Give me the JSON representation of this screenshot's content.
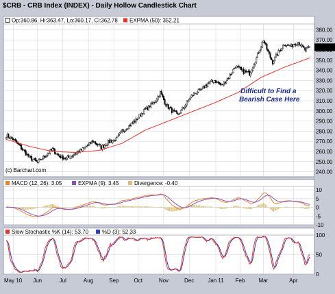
{
  "chart_data": {
    "type": "candlestick",
    "title": "$CRB - CRB Index (INDEX) - Daily Hollow Candlestick Chart",
    "source": "(c) Barchart.com",
    "annotation": [
      "Difficult to Find a",
      "Bearish Case Here"
    ],
    "x_labels": [
      "May 10",
      "Jun",
      "Jul",
      "Aug",
      "Sep",
      "Oct",
      "Nov",
      "Dec",
      "Jan 11",
      "Feb",
      "Mar",
      "Apr"
    ],
    "x_label_index": [
      6,
      27,
      49,
      71,
      93,
      114,
      136,
      158,
      181,
      202,
      222,
      248
    ],
    "price_panel": {
      "legend_ohlc": "Op:360.86, Hi:363.47, Lo:360.17, Cl:362.78",
      "legend_ema": "EXPMA (50): 352.21",
      "last_label": "362.78",
      "last_value": 362.78,
      "ylim": [
        235,
        385
      ],
      "yticks": [
        240,
        250,
        260,
        270,
        280,
        290,
        300,
        310,
        320,
        330,
        340,
        350,
        360,
        370,
        380
      ],
      "ytick_labels": [
        "240.00",
        "250.00",
        "260.00",
        "270.00",
        "280.00",
        "290.00",
        "300.00",
        "310.00",
        "320.00",
        "330.00",
        "340.00",
        "350.00",
        "360.00",
        "370.00",
        "380.00"
      ],
      "close_anchors": [
        [
          0,
          276
        ],
        [
          6,
          272
        ],
        [
          14,
          262
        ],
        [
          20,
          254
        ],
        [
          27,
          249
        ],
        [
          33,
          255
        ],
        [
          40,
          262
        ],
        [
          46,
          255
        ],
        [
          52,
          253
        ],
        [
          58,
          257
        ],
        [
          66,
          262
        ],
        [
          75,
          270
        ],
        [
          82,
          264
        ],
        [
          88,
          269
        ],
        [
          95,
          272
        ],
        [
          100,
          280
        ],
        [
          106,
          285
        ],
        [
          112,
          291
        ],
        [
          118,
          299
        ],
        [
          124,
          305
        ],
        [
          128,
          309
        ],
        [
          133,
          318
        ],
        [
          138,
          306
        ],
        [
          143,
          300
        ],
        [
          148,
          296
        ],
        [
          153,
          303
        ],
        [
          158,
          312
        ],
        [
          163,
          318
        ],
        [
          168,
          320
        ],
        [
          174,
          327
        ],
        [
          180,
          330
        ],
        [
          186,
          325
        ],
        [
          192,
          333
        ],
        [
          198,
          344
        ],
        [
          204,
          339
        ],
        [
          210,
          337
        ],
        [
          216,
          352
        ],
        [
          222,
          370
        ],
        [
          226,
          358
        ],
        [
          230,
          348
        ],
        [
          234,
          356
        ],
        [
          240,
          366
        ],
        [
          246,
          364
        ],
        [
          252,
          368
        ],
        [
          258,
          360
        ],
        [
          262,
          362.78
        ]
      ],
      "ema_anchors": [
        [
          0,
          272
        ],
        [
          20,
          265
        ],
        [
          40,
          260
        ],
        [
          60,
          259
        ],
        [
          80,
          261
        ],
        [
          100,
          268
        ],
        [
          120,
          281
        ],
        [
          140,
          290
        ],
        [
          160,
          299
        ],
        [
          180,
          308
        ],
        [
          200,
          318
        ],
        [
          220,
          333
        ],
        [
          240,
          343
        ],
        [
          262,
          352.21
        ]
      ],
      "ema_color": "#e8322b"
    },
    "macd_panel": {
      "legend_macd": "MACD (12, 26): 3.05",
      "legend_signal": "EXPMA (9): 3.45",
      "legend_div": "Divergence: -0.40",
      "ylim": [
        -10,
        12
      ],
      "yticks": [
        -10,
        -5,
        0,
        5,
        10
      ],
      "ytick_labels": [
        "-10",
        "-5",
        "0",
        "5",
        "10"
      ],
      "macd_color": "#e8832b",
      "signal_color": "#8a4fc4",
      "div_color": "#d6c07a"
    },
    "stoch_panel": {
      "legend_k": "Slow Stochastic %K (14): 53.70",
      "legend_d": "%D (3): 52.33",
      "ylim": [
        0,
        100
      ],
      "yticks": [
        0,
        50,
        100
      ],
      "ytick_labels": [
        "0",
        "50",
        "100"
      ],
      "k_color": "#e8322b",
      "d_color": "#2e3dc4"
    },
    "colors": {
      "frame_bg": "#c7cbd6",
      "grid": "#d4d6de",
      "candle": "#000000"
    }
  }
}
